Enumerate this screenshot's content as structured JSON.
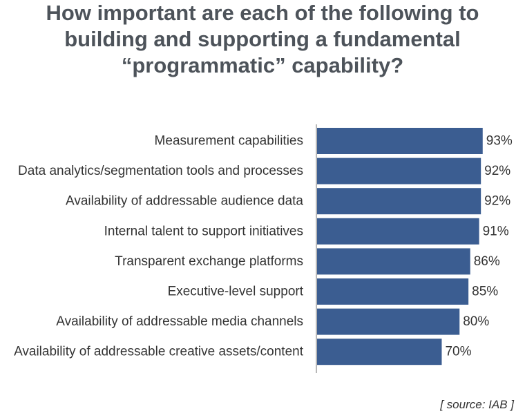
{
  "chart_data": {
    "type": "bar",
    "orientation": "horizontal",
    "title": "How important are each of the following to building and supporting a fundamental “programmatic” capability?",
    "title_lines": [
      "How important are each of the following to",
      "building and supporting a fundamental",
      "“programmatic” capability?"
    ],
    "categories": [
      "Measurement capabilities",
      "Data analytics/segmentation tools and processes",
      "Availability of addressable audience data",
      "Internal talent to support initiatives",
      "Transparent exchange platforms",
      "Executive-level support",
      "Availability of addressable media channels",
      "Availability of addressable creative assets/content"
    ],
    "values": [
      93,
      92,
      92,
      91,
      86,
      85,
      80,
      70
    ],
    "value_labels": [
      "93%",
      "92%",
      "92%",
      "91%",
      "86%",
      "85%",
      "80%",
      "70%"
    ],
    "unit": "%",
    "bar_color": "#3b5d91",
    "axis_color": "#b8b8b8",
    "xlim": [
      0,
      100
    ],
    "grid": false,
    "legend": "none"
  },
  "source": "[ source: IAB ]",
  "colors": {
    "title": "#4d535a",
    "text": "#333333",
    "bar": "#3b5d91"
  }
}
